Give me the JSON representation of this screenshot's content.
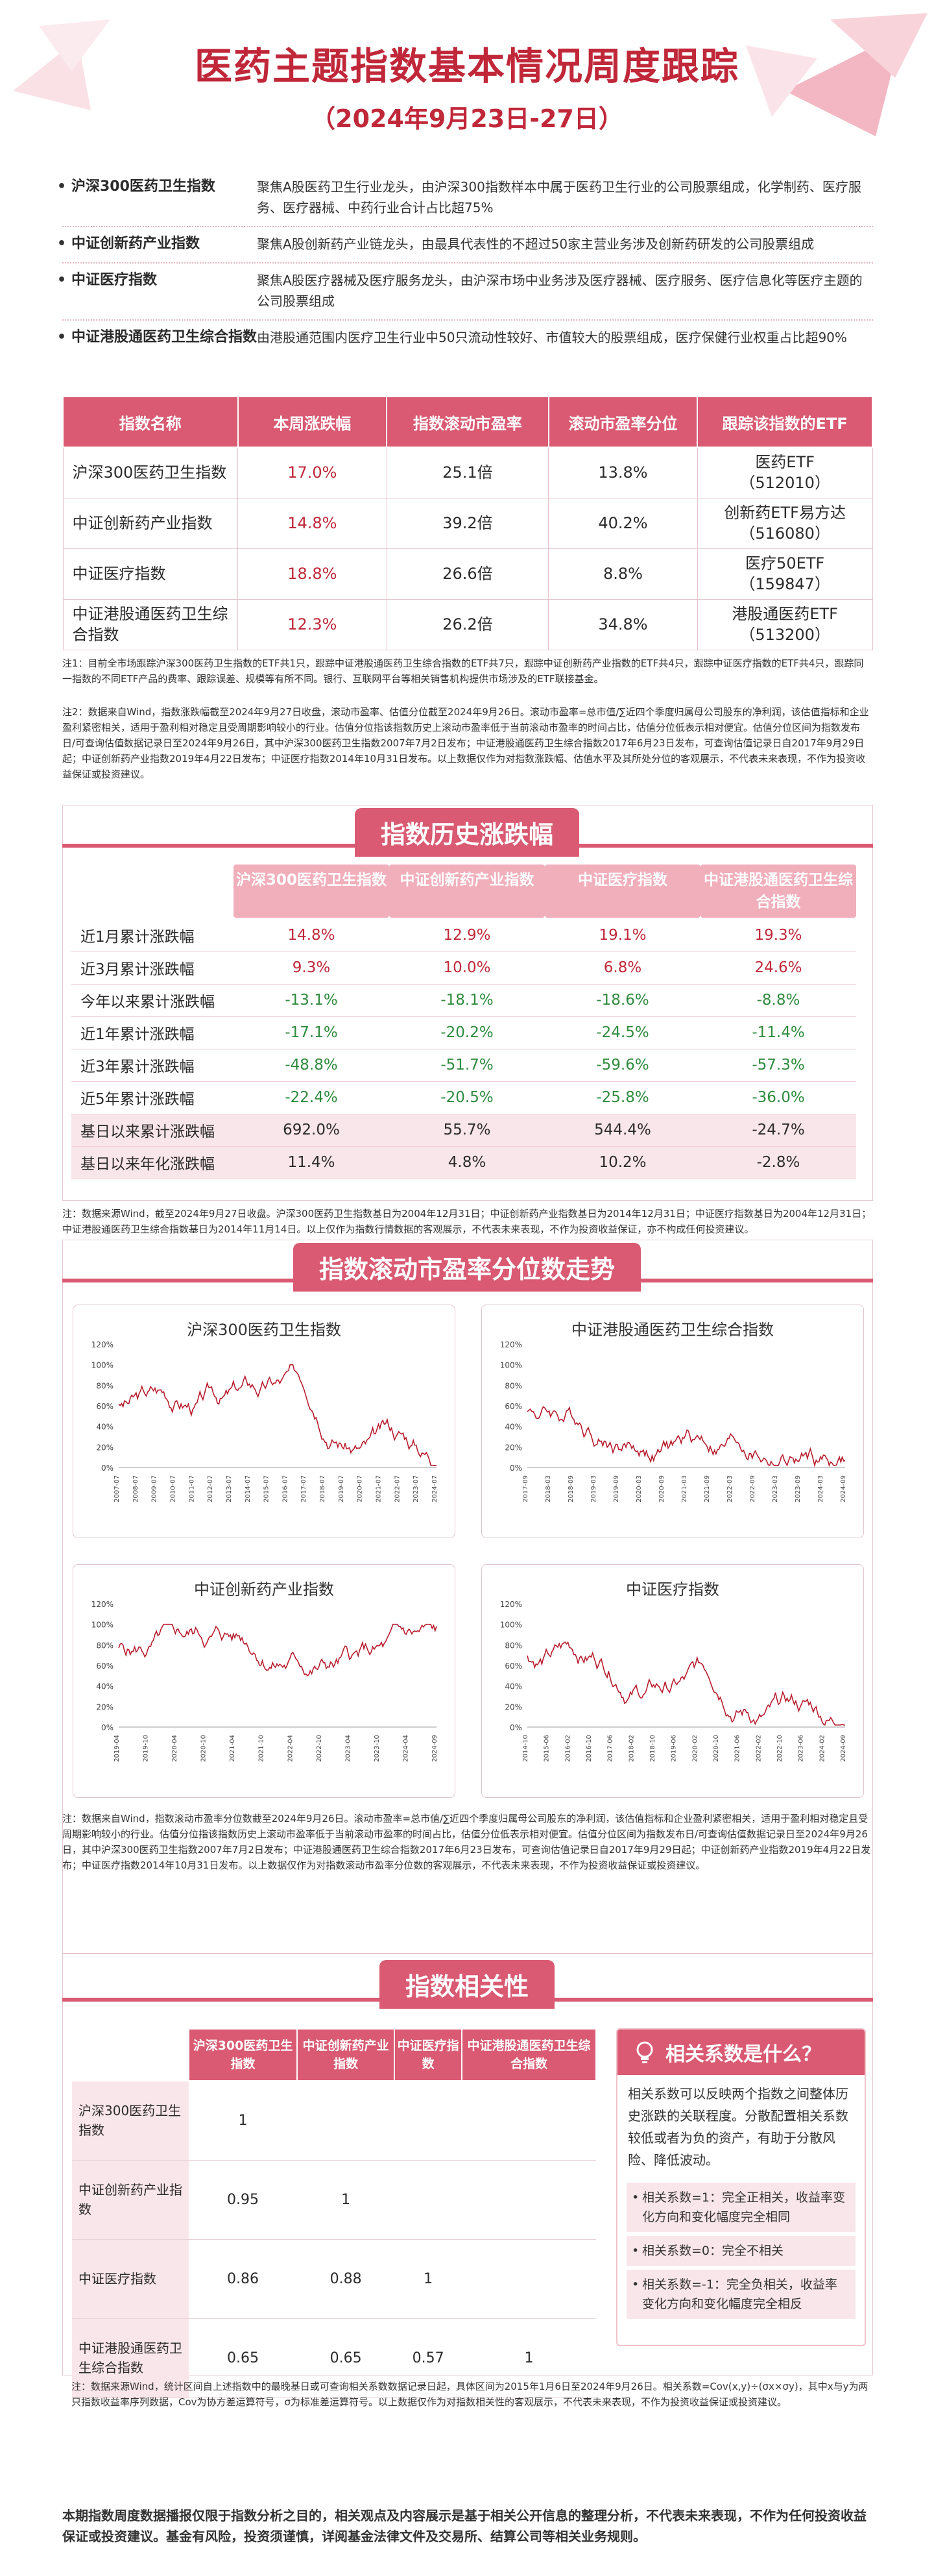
{
  "header": {
    "title": "医药主题指数基本情况周度跟踪",
    "subtitle": "（2024年9月23日-27日）"
  },
  "intro": [
    {
      "name": "沪深300医药卫生指数",
      "desc": "聚焦A股医药卫生行业龙头，由沪深300指数样本中属于医药卫生行业的公司股票组成，化学制药、医疗服务、医疗器械、中药行业合计占比超75%"
    },
    {
      "name": "中证创新药产业指数",
      "desc": "聚焦A股创新药产业链龙头，由最具代表性的不超过50家主营业务涉及创新药研发的公司股票组成"
    },
    {
      "name": "中证医疗指数",
      "desc": "聚焦A股医疗器械及医疗服务龙头，由沪深市场中业务涉及医疗器械、医疗服务、医疗信息化等医疗主题的公司股票组成"
    },
    {
      "name": "中证港股通医药卫生综合指数",
      "desc": "由港股通范围内医疗卫生行业中50只流动性较好、市值较大的股票组成，医疗保健行业权重占比超90%"
    }
  ],
  "table1": {
    "headers": [
      "指数名称",
      "本周涨跌幅",
      "指数滚动市盈率",
      "滚动市盈率分位",
      "跟踪该指数的ETF"
    ],
    "rows": [
      {
        "name": "沪深300医药卫生指数",
        "chg": "17.0%",
        "pe": "25.1倍",
        "pct": "13.8%",
        "etf": "医药ETF",
        "code": "（512010）"
      },
      {
        "name": "中证创新药产业指数",
        "chg": "14.8%",
        "pe": "39.2倍",
        "pct": "40.2%",
        "etf": "创新药ETF易方达",
        "code": "（516080）"
      },
      {
        "name": "中证医疗指数",
        "chg": "18.8%",
        "pe": "26.6倍",
        "pct": "8.8%",
        "etf": "医疗50ETF",
        "code": "（159847）"
      },
      {
        "name": "中证港股通医药卫生综合指数",
        "chg": "12.3%",
        "pe": "26.2倍",
        "pct": "34.8%",
        "etf": "港股通医药ETF",
        "code": "（513200）"
      }
    ]
  },
  "note1a": "注1：目前全市场跟踪沪深300医药卫生指数的ETF共1只，跟踪中证港股通医药卫生综合指数的ETF共7只，跟踪中证创新药产业指数的ETF共4只，跟踪中证医疗指数的ETF共4只，跟踪同一指数的不同ETF产品的费率、跟踪误差、规模等有所不同。银行、互联网平台等相关销售机构提供市场涉及的ETF联接基金。",
  "note1b": "注2：数据来自Wind，指数涨跌幅截至2024年9月27日收盘，滚动市盈率、估值分位截至2024年9月26日。滚动市盈率=总市值/∑近四个季度归属母公司股东的净利润，该估值指标和企业盈利紧密相关，适用于盈利相对稳定且受周期影响较小的行业。估值分位指该指数历史上滚动市盈率低于当前滚动市盈率的时间占比，估值分位低表示相对便宜。估值分位区间为指数发布日/可查询估值数据记录日至2024年9月26日，其中沪深300医药卫生指数2007年7月2日发布；中证港股通医药卫生综合指数2017年6月23日发布，可查询估值记录日自2017年9月29日起；中证创新药产业指数2019年4月22日发布；中证医疗指数2014年10月31日发布。以上数据仅作为对指数涨跌幅、估值水平及其所处分位的客观展示，不代表未来表现，不作为投资收益保证或投资建议。",
  "sec2": {
    "title": "指数历史涨跌幅"
  },
  "table2": {
    "headers": [
      "沪深300医药卫生指数",
      "中证创新药产业指数",
      "中证医疗指数",
      "中证港股通医药卫生综合指数"
    ],
    "rows": [
      {
        "label": "近1月累计涨跌幅",
        "v": [
          "14.8%",
          "12.9%",
          "19.1%",
          "19.3%"
        ]
      },
      {
        "label": "近3月累计涨跌幅",
        "v": [
          "9.3%",
          "10.0%",
          "6.8%",
          "24.6%"
        ]
      },
      {
        "label": "今年以来累计涨跌幅",
        "v": [
          "-13.1%",
          "-18.1%",
          "-18.6%",
          "-8.8%"
        ]
      },
      {
        "label": "近1年累计涨跌幅",
        "v": [
          "-17.1%",
          "-20.2%",
          "-24.5%",
          "-11.4%"
        ]
      },
      {
        "label": "近3年累计涨跌幅",
        "v": [
          "-48.8%",
          "-51.7%",
          "-59.6%",
          "-57.3%"
        ]
      },
      {
        "label": "近5年累计涨跌幅",
        "v": [
          "-22.4%",
          "-20.5%",
          "-25.8%",
          "-36.0%"
        ]
      },
      {
        "label": "基日以来累计涨跌幅",
        "v": [
          "692.0%",
          "55.7%",
          "544.4%",
          "-24.7%"
        ]
      },
      {
        "label": "基日以来年化涨跌幅",
        "v": [
          "11.4%",
          "4.8%",
          "10.2%",
          "-2.8%"
        ]
      }
    ]
  },
  "note2": "注：数据来源Wind，截至2024年9月27日收盘。沪深300医药卫生指数基日为2004年12月31日；中证创新药产业指数基日为2014年12月31日；中证医疗指数基日为2004年12月31日；中证港股通医药卫生综合指数基日为2014年11月14日。以上仅作为指数行情数据的客观展示，不代表未来表现，不作为投资收益保证，亦不构成任何投资建议。",
  "sec3": {
    "title": "指数滚动市盈率分位数走势"
  },
  "charts": [
    {
      "title": "沪深300医药卫生指数",
      "yticks": [
        "120%",
        "100%",
        "80%",
        "60%",
        "40%",
        "20%",
        "0%"
      ],
      "xticks": [
        "2007-07",
        "2008-07",
        "2009-07",
        "2010-07",
        "2011-07",
        "2012-07",
        "2013-07",
        "2014-07",
        "2015-07",
        "2016-07",
        "2017-07",
        "2018-07",
        "2019-07",
        "2020-07",
        "2021-07",
        "2022-07",
        "2023-07",
        "2024-07"
      ]
    },
    {
      "title": "中证港股通医药卫生综合指数",
      "yticks": [
        "120%",
        "100%",
        "80%",
        "60%",
        "40%",
        "20%",
        "0%"
      ],
      "xticks": [
        "2017-09",
        "2018-03",
        "2018-09",
        "2019-03",
        "2019-09",
        "2020-03",
        "2020-09",
        "2021-03",
        "2021-09",
        "2022-03",
        "2022-09",
        "2023-03",
        "2023-09",
        "2024-03",
        "2024-09"
      ]
    },
    {
      "title": "中证创新药产业指数",
      "yticks": [
        "120%",
        "100%",
        "80%",
        "60%",
        "40%",
        "20%",
        "0%"
      ],
      "xticks": [
        "2019-04",
        "2019-10",
        "2020-04",
        "2020-10",
        "2021-04",
        "2021-10",
        "2022-04",
        "2022-10",
        "2023-04",
        "2023-10",
        "2024-04",
        "2024-09"
      ]
    },
    {
      "title": "中证医疗指数",
      "yticks": [
        "120%",
        "100%",
        "80%",
        "60%",
        "40%",
        "20%",
        "0%"
      ],
      "xticks": [
        "2014-10",
        "2015-06",
        "2016-02",
        "2016-10",
        "2017-06",
        "2018-02",
        "2018-10",
        "2019-06",
        "2020-02",
        "2020-10",
        "2021-06",
        "2022-02",
        "2022-10",
        "2023-06",
        "2024-02",
        "2024-09"
      ]
    }
  ],
  "note3": "注：数据来自Wind，指数滚动市盈率分位数截至2024年9月26日。滚动市盈率=总市值/∑近四个季度归属母公司股东的净利润，该估值指标和企业盈利紧密相关，适用于盈利相对稳定且受周期影响较小的行业。估值分位指该指数历史上滚动市盈率低于当前滚动市盈率的时间占比，估值分位低表示相对便宜。估值分位区间为指数发布日/可查询估值数据记录日至2024年9月26日，其中沪深300医药卫生指数2007年7月2日发布；中证港股通医药卫生综合指数2017年6月23日发布，可查询估值记录日自2017年9月29日起；中证创新药产业指数2019年4月22日发布；中证医疗指数2014年10月31日发布。以上数据仅作为对指数滚动市盈率分位数的客观展示，不代表未来表现，不作为投资收益保证或投资建议。",
  "sec4": {
    "title": "指数相关性"
  },
  "table3": {
    "headers": [
      "沪深300医药卫生指数",
      "中证创新药产业指数",
      "中证医疗指数",
      "中证港股通医药卫生综合指数"
    ],
    "rows": [
      {
        "label": "沪深300医药卫生指数",
        "v": [
          "1",
          "",
          "",
          ""
        ]
      },
      {
        "label": "中证创新药产业指数",
        "v": [
          "0.95",
          "1",
          "",
          ""
        ]
      },
      {
        "label": "中证医疗指数",
        "v": [
          "0.86",
          "0.88",
          "1",
          ""
        ]
      },
      {
        "label": "中证港股通医药卫生综合指数",
        "v": [
          "0.65",
          "0.65",
          "0.57",
          "1"
        ]
      }
    ]
  },
  "qa": {
    "title": "相关系数是什么？",
    "intro": "相关系数可以反映两个指数之间整体历史涨跌的关联程度。分散配置相关系数较低或者为负的资产，有助于分散风险、降低波动。",
    "bullets": [
      "相关系数=1：完全正相关，收益率变化方向和变化幅度完全相同",
      "相关系数=0：完全不相关",
      "相关系数=-1：完全负相关，收益率变化方向和变化幅度完全相反"
    ]
  },
  "note4": "注：数据来源Wind，统计区间自上述指数中的最晚基日或可查询相关系数数据记录日起，具体区间为2015年1月6日至2024年9月26日。相关系数=Cov(x,y)÷(σx×σy)，其中x与y为两只指数收益率序列数据，Cov为协方差运算符号，σ为标准差运算符号。以上数据仅作为对指数相关性的客观展示，不代表未来表现，不作为投资收益保证或投资建议。",
  "footer": "本期指数周度数据播报仅限于指数分析之目的，相关观点及内容展示是基于相关公开信息的整理分析，不代表未来表现，不作为任何投资收益保证或投资建议。基金有风险，投资须谨慎，详阅基金法律文件及交易所、结算公司等相关业务规则。",
  "colors": {
    "accent": "#c0283a",
    "header_pink": "#d95a72",
    "light_pink": "#f9e6ea"
  }
}
